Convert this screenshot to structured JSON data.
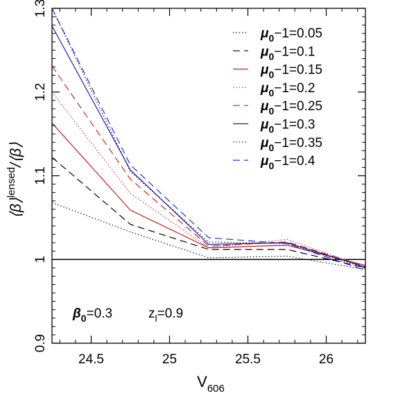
{
  "chart_data": {
    "type": "line",
    "xlabel": "V",
    "xlabel_sub": "606",
    "ylabel_prefix": "⟨β⟩",
    "ylabel_sup": "lensed",
    "ylabel_suffix": "/⟨β⟩",
    "xlim": [
      24.25,
      26.25
    ],
    "ylim": [
      0.9,
      1.3
    ],
    "xticks": [
      24.5,
      25,
      25.5,
      26
    ],
    "xtick_labels": [
      "24.5",
      "25",
      "25.5",
      "26"
    ],
    "yticks": [
      0.9,
      1,
      1.1,
      1.2,
      1.3
    ],
    "ytick_labels": [
      "0.9",
      "1",
      "1.1",
      "1.2",
      "1.3"
    ],
    "reference_line": 1.0,
    "x": [
      24.25,
      24.75,
      25.25,
      25.75,
      26.25
    ],
    "series": [
      {
        "name": "μ₀−1=0.05",
        "color": "#000000",
        "dash": "dotted",
        "values": [
          1.068,
          1.033,
          1.002,
          1.004,
          0.988
        ]
      },
      {
        "name": "μ₀−1=0.1",
        "color": "#000000",
        "dash": "dashed",
        "values": [
          1.122,
          1.042,
          1.012,
          1.012,
          0.99
        ]
      },
      {
        "name": "μ₀−1=0.15",
        "color": "#b22222",
        "dash": "solid",
        "values": [
          1.163,
          1.059,
          1.014,
          1.017,
          0.993
        ]
      },
      {
        "name": "μ₀−1=0.2",
        "color": "#cc2222",
        "dash": "dotted",
        "values": [
          1.2,
          1.079,
          1.014,
          1.024,
          0.991
        ]
      },
      {
        "name": "μ₀−1=0.25",
        "color": "#cc2222",
        "dash": "dashed",
        "values": [
          1.231,
          1.096,
          1.016,
          1.021,
          0.992
        ]
      },
      {
        "name": "μ₀−1=0.3",
        "color": "#1a1aaa",
        "dash": "solid",
        "values": [
          1.279,
          1.107,
          1.018,
          1.02,
          0.991
        ]
      },
      {
        "name": "μ₀−1=0.35",
        "color": "#000000",
        "dash": "dotted",
        "values": [
          1.3,
          1.105,
          1.021,
          1.019,
          0.99
        ]
      },
      {
        "name": "μ₀−1=0.4",
        "color": "#2a2ad0",
        "dash": "dashed",
        "values": [
          1.3,
          1.113,
          1.026,
          1.019,
          0.987
        ]
      }
    ],
    "legend": {
      "position": "top-right",
      "entries": [
        {
          "prefix": "μ",
          "sub": "0",
          "suffix": "−1=0.05"
        },
        {
          "prefix": "μ",
          "sub": "0",
          "suffix": "−1=0.1"
        },
        {
          "prefix": "μ",
          "sub": "0",
          "suffix": "−1=0.15"
        },
        {
          "prefix": "μ",
          "sub": "0",
          "suffix": "−1=0.2"
        },
        {
          "prefix": "μ",
          "sub": "0",
          "suffix": "−1=0.25"
        },
        {
          "prefix": "μ",
          "sub": "0",
          "suffix": "−1=0.3"
        },
        {
          "prefix": "μ",
          "sub": "0",
          "suffix": "−1=0.35"
        },
        {
          "prefix": "μ",
          "sub": "0",
          "suffix": "−1=0.4"
        }
      ]
    },
    "annotation": {
      "beta_symbol": "β",
      "beta_sub": "0",
      "beta_value": "=0.3",
      "z_symbol": "z",
      "z_sub": "l",
      "z_value": "=0.9"
    },
    "grid": false
  }
}
